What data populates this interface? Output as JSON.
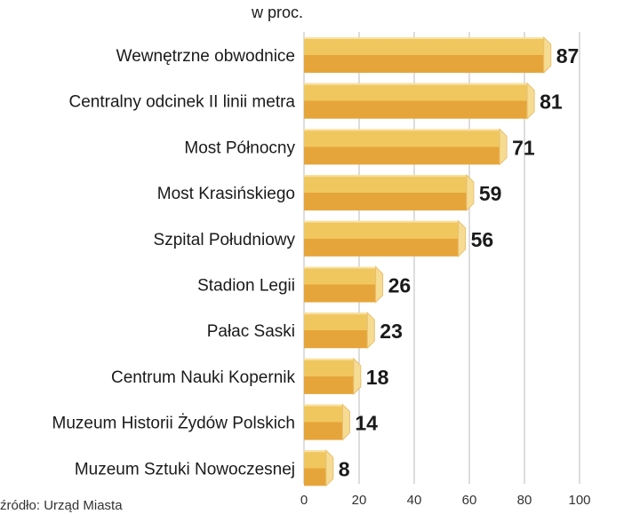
{
  "chart_data": {
    "type": "bar",
    "orientation": "horizontal",
    "subtitle": "w proc.",
    "categories": [
      "Wewnętrzne obwodnice",
      "Centralny odcinek II linii metra",
      "Most Północny",
      "Most Krasińskiego",
      "Szpital Południowy",
      "Stadion Legii",
      "Pałac Saski",
      "Centrum Nauki Kopernik",
      "Muzeum Historii Żydów Polskich",
      "Muzeum Sztuki Nowoczesnej"
    ],
    "values": [
      87,
      81,
      71,
      59,
      56,
      26,
      23,
      18,
      14,
      8
    ],
    "value_labels": [
      "87",
      "81",
      "71",
      "59",
      "56",
      "26",
      "23",
      "18",
      "14",
      "8"
    ],
    "xlim": [
      0,
      100
    ],
    "xticks": [
      0,
      20,
      40,
      60,
      80,
      100
    ],
    "xtick_labels": [
      "0",
      "20",
      "40",
      "60",
      "80",
      "100"
    ],
    "grid": true,
    "source": "źródło: Urząd Miasta",
    "colors": {
      "bar_top": "#f0c75e",
      "bar_bottom": "#e6a53a",
      "bar_cap": "#f6dc93",
      "grid": "#bbbbbb",
      "text": "#1a1a1a"
    }
  }
}
